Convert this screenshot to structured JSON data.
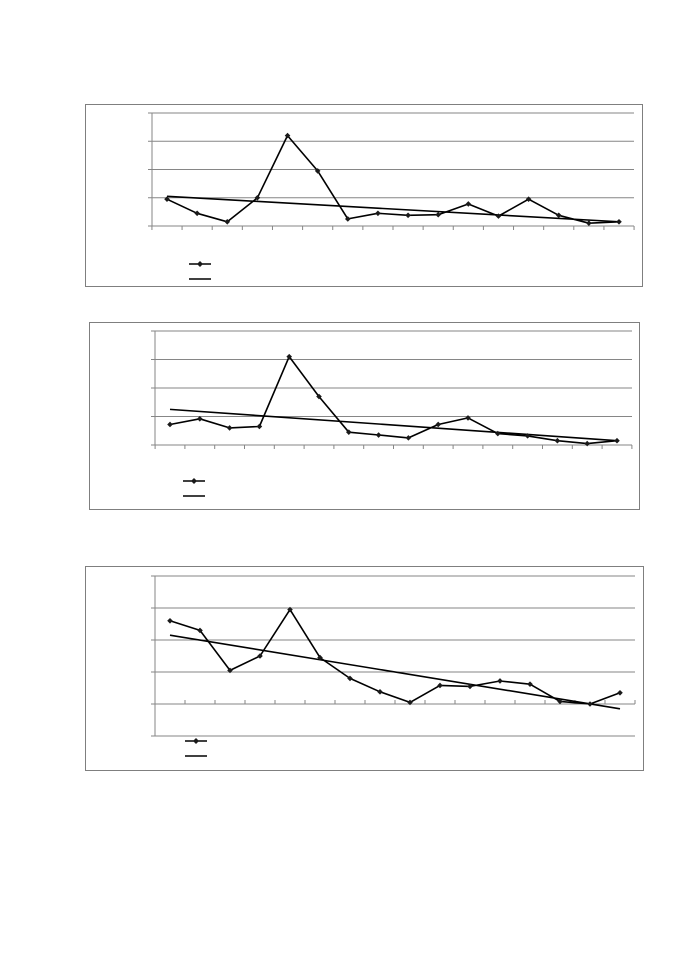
{
  "chart_data": [
    {
      "type": "line",
      "title": "",
      "xlabel": "",
      "ylabel": "",
      "ylim": [
        0,
        4
      ],
      "grid": true,
      "legend": "bottom-left",
      "x": [
        1,
        2,
        3,
        4,
        5,
        6,
        7,
        8,
        9,
        10,
        11,
        12,
        13,
        14,
        15,
        16
      ],
      "series": [
        {
          "values": [
            0.95,
            0.45,
            0.15,
            1.0,
            3.2,
            1.95,
            0.25,
            0.45,
            0.38,
            0.4,
            0.78,
            0.35,
            0.95,
            0.38,
            0.1,
            0.15
          ]
        }
      ],
      "trend": [
        1.05,
        0.15
      ]
    },
    {
      "type": "line",
      "title": "",
      "xlabel": "",
      "ylabel": "",
      "ylim": [
        0,
        4
      ],
      "grid": true,
      "legend": "bottom-left",
      "x": [
        1,
        2,
        3,
        4,
        5,
        6,
        7,
        8,
        9,
        10,
        11,
        12,
        13,
        14,
        15,
        16
      ],
      "series": [
        {
          "values": [
            0.72,
            0.92,
            0.6,
            0.65,
            3.1,
            1.7,
            0.45,
            0.35,
            0.25,
            0.72,
            0.95,
            0.4,
            0.32,
            0.15,
            0.05,
            0.15
          ]
        }
      ],
      "trend": [
        1.25,
        0.15
      ]
    },
    {
      "type": "line",
      "title": "",
      "xlabel": "",
      "ylabel": "",
      "ylim": [
        -1,
        4
      ],
      "grid": true,
      "legend": "bottom-left",
      "x": [
        1,
        2,
        3,
        4,
        5,
        6,
        7,
        8,
        9,
        10,
        11,
        12,
        13,
        14,
        15,
        16
      ],
      "series": [
        {
          "values": [
            2.6,
            2.3,
            1.05,
            1.5,
            2.95,
            1.45,
            0.8,
            0.38,
            0.05,
            0.58,
            0.55,
            0.72,
            0.62,
            0.08,
            0.0,
            0.35
          ]
        }
      ],
      "trend": [
        2.15,
        -0.15
      ]
    }
  ]
}
